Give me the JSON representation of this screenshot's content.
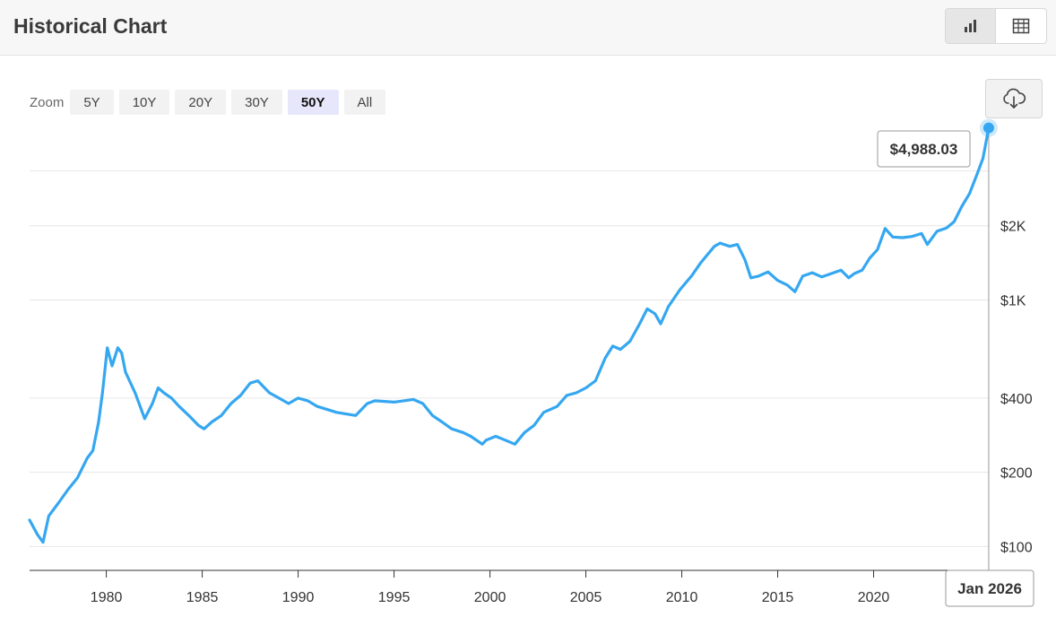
{
  "header": {
    "title": "Historical Chart",
    "chart_view_icon": "bar-chart-icon",
    "table_view_icon": "table-icon"
  },
  "zoom": {
    "label": "Zoom",
    "options": [
      "5Y",
      "10Y",
      "20Y",
      "30Y",
      "50Y",
      "All"
    ],
    "selected": "50Y"
  },
  "download_icon": "cloud-download-icon",
  "colors": {
    "line": "#35a7f0",
    "grid": "#e6e6e6",
    "active_zoom": "#e6e7fb"
  },
  "chart_data": {
    "type": "line",
    "y_scale": "log",
    "x_range": [
      1976,
      2026.05
    ],
    "y_range": [
      80,
      5100
    ],
    "ytick_values": [
      100,
      200,
      400,
      1000,
      2000
    ],
    "ytick_labels": [
      "$100",
      "$200",
      "$400",
      "$1K",
      "$2K"
    ],
    "xtick_values": [
      1980,
      1985,
      1990,
      1995,
      2000,
      2005,
      2010,
      2015,
      2020
    ],
    "xtick_labels": [
      "1980",
      "1985",
      "1990",
      "1995",
      "2000",
      "2005",
      "2010",
      "2015",
      "2020"
    ],
    "grid": true,
    "tooltip": {
      "value_label": "$4,988.03",
      "date_label": "Jan 2026"
    },
    "series": [
      {
        "x": [
          1976.0,
          1976.4,
          1976.7,
          1977.0,
          1977.5,
          1978.0,
          1978.5,
          1979.0,
          1979.3,
          1979.6,
          1979.8,
          1980.05,
          1980.3,
          1980.6,
          1980.8,
          1981.0,
          1981.5,
          1982.0,
          1982.4,
          1982.7,
          1983.0,
          1983.4,
          1983.8,
          1984.3,
          1984.8,
          1985.1,
          1985.5,
          1986.0,
          1986.5,
          1987.0,
          1987.5,
          1987.9,
          1988.5,
          1989.0,
          1989.5,
          1990.0,
          1990.5,
          1991.0,
          1992.0,
          1993.0,
          1993.6,
          1994.0,
          1995.0,
          1996.0,
          1996.5,
          1997.0,
          1997.5,
          1998.0,
          1998.6,
          1999.0,
          1999.6,
          1999.8,
          2000.3,
          2000.8,
          2001.3,
          2001.8,
          2002.3,
          2002.8,
          2003.5,
          2004.0,
          2004.5,
          2005.0,
          2005.5,
          2006.0,
          2006.4,
          2006.8,
          2007.3,
          2007.8,
          2008.2,
          2008.6,
          2008.9,
          2009.3,
          2009.9,
          2010.5,
          2011.0,
          2011.7,
          2012.0,
          2012.5,
          2012.9,
          2013.3,
          2013.6,
          2014.0,
          2014.5,
          2015.0,
          2015.5,
          2015.9,
          2016.3,
          2016.8,
          2017.3,
          2017.8,
          2018.3,
          2018.7,
          2019.0,
          2019.4,
          2019.8,
          2020.2,
          2020.6,
          2021.0,
          2021.5,
          2022.0,
          2022.5,
          2022.8,
          2023.3,
          2023.8,
          2024.2,
          2024.6,
          2025.0,
          2025.4,
          2025.7,
          2026.0
        ],
        "y": [
          128,
          112,
          104,
          133,
          150,
          170,
          190,
          228,
          245,
          320,
          420,
          640,
          540,
          640,
          610,
          510,
          420,
          330,
          380,
          440,
          420,
          400,
          370,
          340,
          310,
          300,
          320,
          340,
          380,
          410,
          460,
          470,
          420,
          400,
          380,
          400,
          390,
          370,
          350,
          340,
          380,
          390,
          385,
          395,
          380,
          340,
          320,
          300,
          290,
          280,
          260,
          270,
          280,
          270,
          260,
          290,
          310,
          350,
          370,
          410,
          420,
          440,
          470,
          580,
          650,
          630,
          680,
          800,
          920,
          880,
          800,
          940,
          1100,
          1250,
          1420,
          1650,
          1700,
          1650,
          1680,
          1450,
          1230,
          1250,
          1300,
          1200,
          1150,
          1080,
          1250,
          1290,
          1240,
          1280,
          1320,
          1230,
          1280,
          1320,
          1480,
          1600,
          1950,
          1800,
          1790,
          1810,
          1860,
          1680,
          1900,
          1960,
          2080,
          2400,
          2700,
          3250,
          3750,
          4988.03
        ]
      }
    ]
  }
}
